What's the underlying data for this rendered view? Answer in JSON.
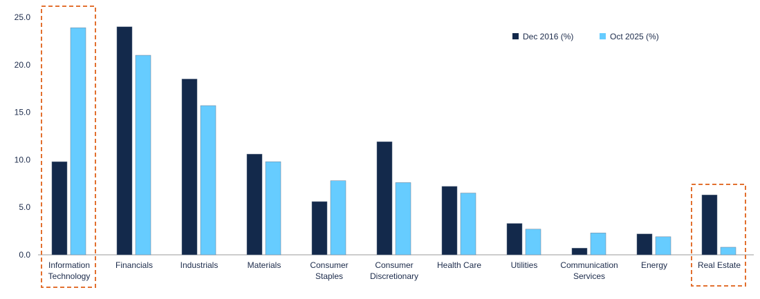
{
  "chart_data": {
    "type": "bar",
    "categories": [
      [
        "Information",
        "Technology"
      ],
      [
        "Financials"
      ],
      [
        "Industrials"
      ],
      [
        "Materials"
      ],
      [
        "Consumer",
        "Staples"
      ],
      [
        "Consumer",
        "Discretionary"
      ],
      [
        "Health Care"
      ],
      [
        "Utilities"
      ],
      [
        "Communication",
        "Services"
      ],
      [
        "Energy"
      ],
      [
        "Real Estate"
      ]
    ],
    "series": [
      {
        "name": "Dec 2016 (%)",
        "color": "#13294b",
        "values": [
          9.8,
          24.0,
          18.5,
          10.6,
          5.6,
          11.9,
          7.2,
          3.3,
          0.7,
          2.2,
          6.3
        ]
      },
      {
        "name": "Oct 2025 (%)",
        "color": "#66ccff",
        "values": [
          23.9,
          21.0,
          15.7,
          9.8,
          7.8,
          7.6,
          6.5,
          2.7,
          2.3,
          1.9,
          0.8
        ]
      }
    ],
    "ylim": [
      0,
      25
    ],
    "yticks": [
      "0.0",
      "5.0",
      "10.0",
      "15.0",
      "20.0",
      "25.0"
    ],
    "grid": false,
    "legend_position": "top-right",
    "highlighted_categories": [
      "Information Technology",
      "Real Estate"
    ],
    "highlight_color": "#e2702f"
  }
}
